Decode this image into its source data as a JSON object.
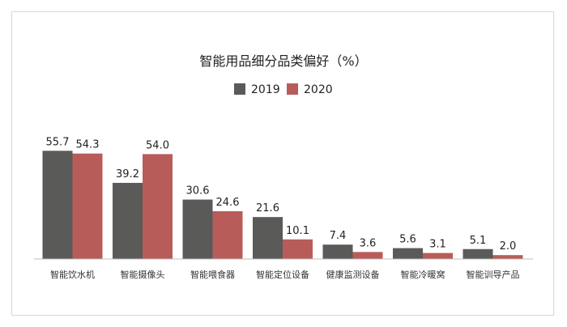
{
  "chart_data": {
    "type": "bar",
    "title": "智能用品细分品类偏好（%）",
    "xlabel": "",
    "ylabel": "",
    "ylim": [
      0,
      60
    ],
    "grid": false,
    "legend_position": "top-center",
    "categories": [
      "智能饮水机",
      "智能摄像头",
      "智能喂食器",
      "智能定位设备",
      "健康监测设备",
      "智能冷暖窝",
      "智能训导产品"
    ],
    "series": [
      {
        "name": "2019",
        "color": "#5a5a58",
        "values": [
          55.7,
          39.2,
          30.6,
          21.6,
          7.4,
          5.6,
          5.1
        ],
        "labels": [
          "55.7",
          "39.2",
          "30.6",
          "21.6",
          "7.4",
          "5.6",
          "5.1"
        ]
      },
      {
        "name": "2020",
        "color": "#b85c5a",
        "values": [
          54.3,
          54.0,
          24.6,
          10.1,
          3.6,
          3.1,
          2.0
        ],
        "labels": [
          "54.3",
          "54.0",
          "24.6",
          "10.1",
          "3.6",
          "3.1",
          "2.0"
        ]
      }
    ]
  }
}
